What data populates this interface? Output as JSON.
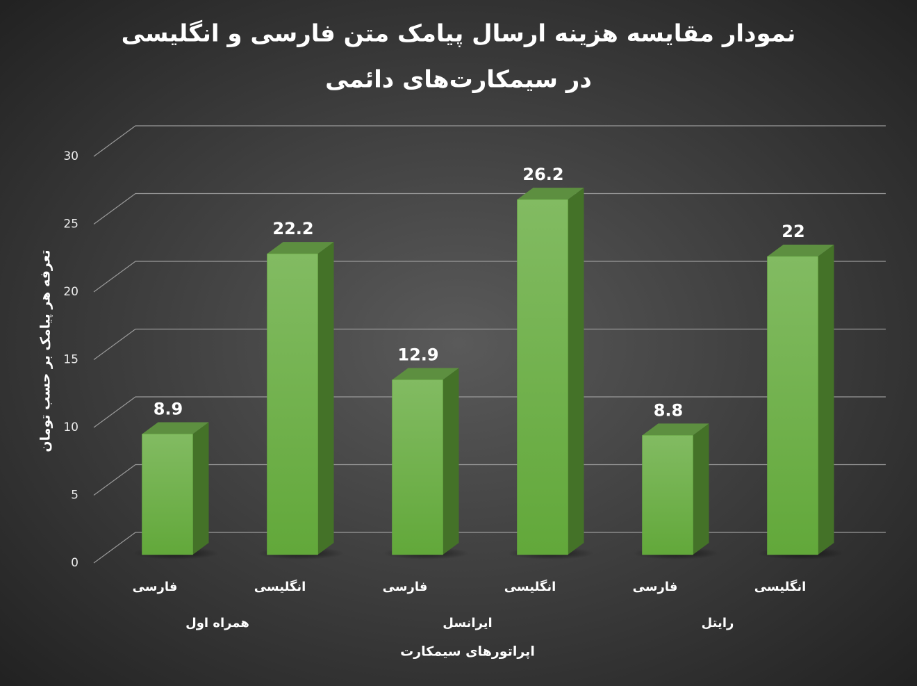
{
  "chart_data": {
    "type": "bar3d",
    "title": [
      "نمودار مقایسه هزینه ارسال پیامک متن فارسی و انگلیسی",
      "در سیمکارت‌های دائمی"
    ],
    "categories": [
      "فارسی",
      "انگلیسی",
      "فارسی",
      "انگلیسی",
      "فارسی",
      "انگلیسی"
    ],
    "groups": [
      "همراه اول",
      "ایرانسل",
      "رایتل"
    ],
    "values": [
      8.9,
      22.2,
      12.9,
      26.2,
      8.8,
      22
    ],
    "color": "#6aaf45",
    "y_label": "تعرفه هر پیامک بر حسب تومان",
    "x_label": "اپراتورهای سیمکارت",
    "ylim": [
      0,
      30
    ],
    "yticks": [
      0,
      5,
      10,
      15,
      20,
      25,
      30
    ],
    "grid": true
  }
}
